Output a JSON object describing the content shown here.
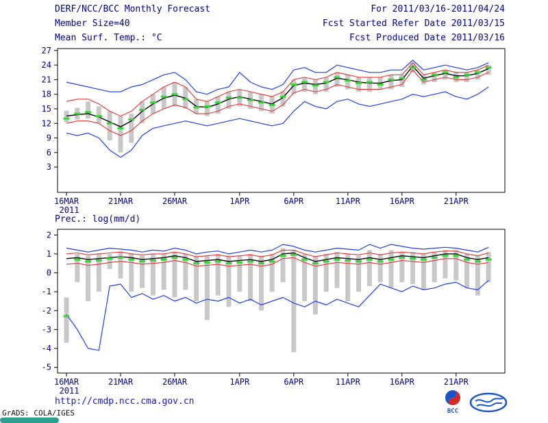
{
  "header": {
    "title": "DERF/NCC/BCC Monthly Forecast",
    "member_size": "Member Size=40",
    "forecast_range": "For 2011/03/16-2011/04/24",
    "refer_date": "Fcst Started Refer Date 2011/03/15",
    "produced_date": "Fcst Produced Date 2011/03/16"
  },
  "footer": {
    "url": "http://cmdp.ncc.cma.gov.cn",
    "credit": "GrADS: COLA/IGES",
    "bcc_label": "BCC"
  },
  "colors": {
    "text_navy": "#00008b",
    "line_blue": "#1e3cff",
    "line_red": "#e63232",
    "line_black": "#000000",
    "median_green": "#3ad43a",
    "bar_gray": "#c8c8c8",
    "frame_black": "#000000",
    "link_blue": "#1515cd",
    "badge_teal": "#2f9f90",
    "logo_red": "#d42a2a",
    "logo_blue": "#1a55c8"
  },
  "chart_data": [
    {
      "type": "line",
      "title": "Mean Surf. Temp.: °C",
      "xlabel": "",
      "ylabel": "°C",
      "grid": false,
      "ylim": [
        -2.2,
        27.4
      ],
      "yticks": [
        3,
        6,
        9,
        12,
        15,
        18,
        21,
        24,
        27
      ],
      "x_tick_labels": [
        "16MAR",
        "21MAR",
        "26MAR",
        "1APR",
        "6APR",
        "11APR",
        "16APR",
        "21APR"
      ],
      "x_tick_positions": [
        0,
        5,
        10,
        16,
        21,
        26,
        31,
        36
      ],
      "x_year_label": "2011",
      "series": [
        {
          "name": "ensemble_max",
          "color": "#1e3cff",
          "width": 1.2,
          "values": [
            20.5,
            20.0,
            19.5,
            19.0,
            18.5,
            18.5,
            19.5,
            20.0,
            21.0,
            22.0,
            22.5,
            21.0,
            18.5,
            18.0,
            19.0,
            19.5,
            22.5,
            20.5,
            19.5,
            19.0,
            20.0,
            23.0,
            23.5,
            22.5,
            22.5,
            24.0,
            23.5,
            23.0,
            22.5,
            22.5,
            23.0,
            23.0,
            25.0,
            23.0,
            23.5,
            24.0,
            23.5,
            23.0,
            23.5,
            24.5
          ]
        },
        {
          "name": "percentile_upper",
          "color": "#e63232",
          "width": 1.1,
          "values": [
            16.5,
            17.0,
            17.0,
            16.0,
            14.5,
            13.5,
            14.5,
            16.5,
            18.0,
            19.5,
            20.5,
            19.5,
            17.0,
            16.5,
            17.5,
            18.5,
            19.0,
            18.5,
            18.0,
            17.5,
            18.5,
            21.0,
            21.5,
            21.0,
            21.5,
            22.5,
            22.0,
            21.5,
            21.5,
            21.5,
            22.0,
            22.0,
            24.5,
            22.0,
            22.5,
            23.0,
            22.5,
            22.5,
            23.0,
            24.0
          ]
        },
        {
          "name": "ensemble_mean",
          "color": "#000000",
          "width": 1.4,
          "values": [
            13.5,
            13.8,
            14.0,
            13.3,
            12.3,
            11.3,
            12.5,
            14.5,
            16.0,
            17.2,
            17.8,
            17.2,
            15.5,
            15.3,
            16.0,
            17.0,
            17.5,
            17.0,
            16.5,
            16.0,
            17.3,
            19.8,
            20.3,
            20.0,
            20.3,
            21.3,
            21.0,
            20.5,
            20.3,
            20.3,
            20.8,
            21.0,
            23.8,
            21.3,
            21.8,
            22.3,
            21.8,
            21.8,
            22.3,
            23.3
          ]
        },
        {
          "name": "percentile_lower",
          "color": "#e63232",
          "width": 1.1,
          "values": [
            12.0,
            12.5,
            12.5,
            12.0,
            10.5,
            9.5,
            10.5,
            12.5,
            14.0,
            15.0,
            15.8,
            15.3,
            14.0,
            14.0,
            14.5,
            15.5,
            16.0,
            15.5,
            15.0,
            14.5,
            15.8,
            18.3,
            19.0,
            18.5,
            19.0,
            20.0,
            19.5,
            19.0,
            19.0,
            19.0,
            19.5,
            20.0,
            23.0,
            20.5,
            21.0,
            21.5,
            21.0,
            21.0,
            21.5,
            22.5
          ]
        },
        {
          "name": "ensemble_min",
          "color": "#1e3cff",
          "width": 1.2,
          "values": [
            10.0,
            9.5,
            10.0,
            9.0,
            6.5,
            5.0,
            6.5,
            9.5,
            11.0,
            11.5,
            12.0,
            12.5,
            12.0,
            11.5,
            12.0,
            12.5,
            13.0,
            12.5,
            12.0,
            11.5,
            12.0,
            14.5,
            16.5,
            15.5,
            15.0,
            16.5,
            17.0,
            16.0,
            15.5,
            16.0,
            16.5,
            17.0,
            18.0,
            17.5,
            18.0,
            18.5,
            17.5,
            17.0,
            18.0,
            19.5
          ]
        }
      ],
      "median": {
        "name": "member_median_dashes",
        "color": "#3ad43a",
        "values": [
          13.0,
          14.0,
          14.3,
          13.5,
          12.0,
          11.0,
          12.8,
          14.8,
          16.3,
          17.5,
          18.0,
          17.0,
          15.3,
          15.5,
          16.3,
          17.3,
          17.3,
          16.8,
          16.3,
          15.8,
          17.5,
          20.0,
          20.5,
          19.8,
          20.5,
          21.5,
          20.8,
          20.3,
          20.5,
          20.0,
          21.0,
          21.3,
          23.5,
          21.0,
          22.0,
          22.5,
          21.5,
          22.0,
          22.5,
          23.5
        ]
      },
      "bars": {
        "name": "ensemble_spread_bars",
        "color": "#c8c8c8",
        "low": [
          12.2,
          12.8,
          13.0,
          12.0,
          8.5,
          6.0,
          8.0,
          12.0,
          14.0,
          15.0,
          15.5,
          15.0,
          14.0,
          13.5,
          14.0,
          15.0,
          15.5,
          15.0,
          14.5,
          14.0,
          15.5,
          18.0,
          18.5,
          18.0,
          18.5,
          19.5,
          19.0,
          18.5,
          18.5,
          19.0,
          19.0,
          19.5,
          22.5,
          20.0,
          20.5,
          21.0,
          20.5,
          20.5,
          21.0,
          22.0
        ],
        "high": [
          14.6,
          15.2,
          16.5,
          15.5,
          14.5,
          13.5,
          14.0,
          16.5,
          18.0,
          19.5,
          20.5,
          19.5,
          17.0,
          16.5,
          17.5,
          18.5,
          19.0,
          18.5,
          18.0,
          17.5,
          18.5,
          21.0,
          21.5,
          21.0,
          21.5,
          22.5,
          22.0,
          21.5,
          21.5,
          21.5,
          22.0,
          22.0,
          24.5,
          22.0,
          22.5,
          23.0,
          22.5,
          22.5,
          23.0,
          24.0
        ]
      }
    },
    {
      "type": "line",
      "title": "Prec.: log(mm/d)",
      "xlabel": "",
      "ylabel": "log(mm/d)",
      "grid": false,
      "ylim": [
        -5.3,
        2.3
      ],
      "yticks": [
        -5,
        -4,
        -3,
        -2,
        -1,
        0,
        1,
        2
      ],
      "x_tick_labels": [
        "16MAR",
        "21MAR",
        "26MAR",
        "1APR",
        "6APR",
        "11APR",
        "16APR",
        "21APR"
      ],
      "x_tick_positions": [
        0,
        5,
        10,
        16,
        21,
        26,
        31,
        36
      ],
      "x_year_label": "2011",
      "series": [
        {
          "name": "ensemble_max",
          "color": "#1e3cff",
          "width": 1.2,
          "values": [
            1.3,
            1.2,
            1.1,
            1.2,
            1.3,
            1.25,
            1.2,
            1.1,
            1.2,
            1.15,
            1.3,
            1.2,
            1.0,
            1.1,
            1.15,
            1.0,
            1.1,
            1.2,
            1.1,
            1.2,
            1.5,
            1.4,
            1.2,
            1.1,
            1.2,
            1.3,
            1.25,
            1.2,
            1.5,
            1.3,
            1.5,
            1.4,
            1.3,
            1.25,
            1.3,
            1.35,
            1.3,
            1.2,
            1.1,
            1.35
          ]
        },
        {
          "name": "percentile_upper",
          "color": "#e63232",
          "width": 1.1,
          "values": [
            1.0,
            1.05,
            0.95,
            1.0,
            1.05,
            1.1,
            1.0,
            0.95,
            1.0,
            1.0,
            1.1,
            1.0,
            0.85,
            0.9,
            0.95,
            0.85,
            0.9,
            0.95,
            0.85,
            0.95,
            1.2,
            1.2,
            1.0,
            0.85,
            0.95,
            1.05,
            1.0,
            0.95,
            1.05,
            0.95,
            1.05,
            1.1,
            1.05,
            1.0,
            1.1,
            1.15,
            1.15,
            1.0,
            0.9,
            1.05
          ]
        },
        {
          "name": "ensemble_mean",
          "color": "#000000",
          "width": 1.4,
          "values": [
            0.75,
            0.8,
            0.7,
            0.75,
            0.8,
            0.85,
            0.8,
            0.7,
            0.75,
            0.8,
            0.9,
            0.8,
            0.6,
            0.65,
            0.7,
            0.6,
            0.65,
            0.7,
            0.6,
            0.7,
            1.0,
            1.05,
            0.8,
            0.6,
            0.7,
            0.8,
            0.75,
            0.7,
            0.8,
            0.7,
            0.8,
            0.9,
            0.85,
            0.8,
            0.9,
            1.0,
            1.0,
            0.8,
            0.7,
            0.8
          ]
        },
        {
          "name": "percentile_lower",
          "color": "#e63232",
          "width": 1.1,
          "values": [
            0.45,
            0.5,
            0.4,
            0.45,
            0.55,
            0.6,
            0.55,
            0.45,
            0.5,
            0.55,
            0.65,
            0.55,
            0.35,
            0.4,
            0.45,
            0.35,
            0.4,
            0.45,
            0.35,
            0.45,
            0.75,
            0.8,
            0.55,
            0.35,
            0.45,
            0.55,
            0.5,
            0.45,
            0.55,
            0.45,
            0.55,
            0.65,
            0.6,
            0.55,
            0.65,
            0.75,
            0.75,
            0.55,
            0.45,
            0.55
          ]
        },
        {
          "name": "ensemble_min",
          "color": "#1e3cff",
          "width": 1.2,
          "values": [
            -2.2,
            -3.0,
            -4.0,
            -4.1,
            -0.7,
            -0.6,
            -1.3,
            -1.1,
            -1.4,
            -1.2,
            -1.5,
            -1.3,
            -1.6,
            -1.4,
            -1.5,
            -1.3,
            -1.6,
            -1.4,
            -1.7,
            -1.5,
            -1.3,
            -1.6,
            -1.8,
            -1.5,
            -1.7,
            -1.4,
            -1.6,
            -1.8,
            -1.2,
            -0.6,
            -0.8,
            -1.0,
            -0.7,
            -0.9,
            -0.8,
            -0.6,
            -0.5,
            -0.8,
            -0.9,
            -0.4
          ]
        }
      ],
      "median": {
        "name": "member_median_dashes",
        "color": "#3ad43a",
        "values": [
          -2.3,
          0.7,
          0.6,
          0.65,
          0.75,
          0.8,
          0.7,
          0.6,
          0.65,
          0.7,
          0.8,
          0.7,
          0.5,
          0.55,
          0.6,
          0.5,
          0.55,
          0.6,
          0.5,
          0.6,
          0.9,
          0.95,
          0.7,
          0.5,
          0.6,
          0.7,
          0.65,
          0.6,
          0.7,
          0.6,
          0.7,
          0.8,
          0.75,
          0.7,
          0.8,
          0.9,
          0.9,
          0.7,
          0.6,
          0.7
        ]
      },
      "bars": {
        "name": "ensemble_spread_bars",
        "color": "#c8c8c8",
        "low": [
          -3.7,
          -0.5,
          -1.5,
          -1.0,
          0.2,
          -0.3,
          -1.0,
          -0.8,
          -1.2,
          -0.9,
          -1.3,
          -0.9,
          -1.5,
          -2.5,
          -1.2,
          -1.8,
          -1.0,
          -1.5,
          -2.0,
          -1.0,
          -0.5,
          -4.2,
          -1.5,
          -2.2,
          -1.0,
          -0.8,
          -1.5,
          -1.0,
          -0.7,
          -0.5,
          -0.8,
          -0.5,
          -0.6,
          -0.9,
          -0.5,
          -0.3,
          -0.4,
          -0.8,
          -1.2,
          -0.5
        ],
        "high": [
          -1.3,
          1.0,
          0.9,
          1.0,
          1.0,
          1.1,
          1.0,
          0.9,
          1.0,
          1.0,
          1.1,
          1.0,
          0.9,
          0.9,
          1.0,
          0.9,
          0.9,
          1.0,
          0.9,
          1.0,
          1.3,
          1.2,
          1.0,
          0.9,
          1.0,
          1.1,
          1.0,
          0.9,
          1.2,
          1.0,
          1.2,
          1.1,
          1.1,
          1.0,
          1.1,
          1.2,
          1.2,
          1.0,
          0.9,
          1.1
        ]
      }
    }
  ]
}
